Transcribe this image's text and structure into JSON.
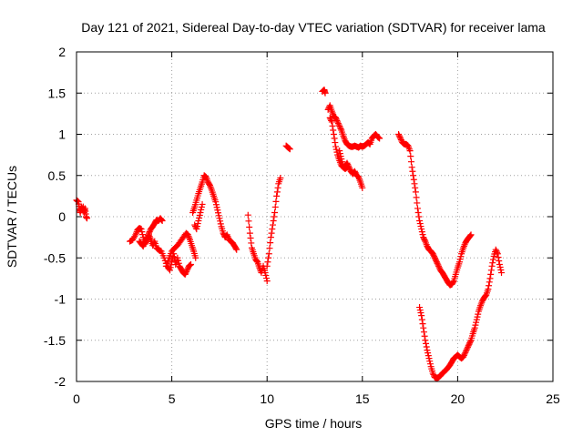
{
  "chart_data": {
    "type": "scatter",
    "title": "Day 121 of 2021, Sidereal Day-to-day VTEC variation (SDTVAR) for receiver lama",
    "xlabel": "GPS time / hours",
    "ylabel": "SDTVAR / TECUs",
    "xlim": [
      0,
      25
    ],
    "ylim": [
      -2,
      2
    ],
    "xticks": [
      0,
      5,
      10,
      15,
      20,
      25
    ],
    "yticks": [
      -2,
      -1.5,
      -1,
      -0.5,
      0,
      0.5,
      1,
      1.5,
      2
    ],
    "xtick_labels": [
      "0",
      "5",
      "10",
      "15",
      "20",
      "25"
    ],
    "ytick_labels": [
      "-2",
      "-1.5",
      "-1",
      "-0.5",
      "0",
      "0.5",
      "1",
      "1.5",
      "2"
    ],
    "grid": true,
    "marker": "+",
    "color": "#ff0000",
    "series": [
      {
        "name": "SDTVAR",
        "segments": [
          [
            [
              0.0,
              0.2
            ],
            [
              0.1,
              0.18
            ],
            [
              0.15,
              0.1
            ],
            [
              0.2,
              0.05
            ],
            [
              0.25,
              0.12
            ],
            [
              0.3,
              0.08
            ],
            [
              0.35,
              0.12
            ],
            [
              0.4,
              0.05
            ],
            [
              0.45,
              0.1
            ],
            [
              0.5,
              0.0
            ],
            [
              0.55,
              -0.02
            ]
          ],
          [
            [
              2.8,
              -0.3
            ],
            [
              2.95,
              -0.28
            ],
            [
              3.1,
              -0.22
            ],
            [
              3.2,
              -0.16
            ],
            [
              3.3,
              -0.14
            ],
            [
              3.4,
              -0.15
            ],
            [
              3.5,
              -0.25
            ],
            [
              3.6,
              -0.33
            ],
            [
              3.7,
              -0.28
            ],
            [
              3.8,
              -0.2
            ],
            [
              3.9,
              -0.15
            ],
            [
              4.0,
              -0.12
            ],
            [
              4.1,
              -0.08
            ],
            [
              4.2,
              -0.04
            ],
            [
              4.3,
              -0.05
            ],
            [
              4.4,
              -0.02
            ],
            [
              4.5,
              -0.05
            ]
          ],
          [
            [
              3.3,
              -0.3
            ],
            [
              3.4,
              -0.33
            ],
            [
              3.5,
              -0.36
            ],
            [
              3.6,
              -0.3
            ],
            [
              3.7,
              -0.26
            ],
            [
              3.8,
              -0.22
            ],
            [
              3.9,
              -0.28
            ],
            [
              4.0,
              -0.35
            ],
            [
              4.1,
              -0.3
            ],
            [
              4.2,
              -0.38
            ],
            [
              4.3,
              -0.4
            ],
            [
              4.45,
              -0.42
            ],
            [
              4.6,
              -0.5
            ],
            [
              4.75,
              -0.6
            ],
            [
              4.9,
              -0.65
            ],
            [
              5.0,
              -0.55
            ],
            [
              5.1,
              -0.45
            ],
            [
              5.2,
              -0.58
            ],
            [
              5.3,
              -0.5
            ],
            [
              5.4,
              -0.6
            ],
            [
              5.5,
              -0.64
            ],
            [
              5.6,
              -0.68
            ],
            [
              5.7,
              -0.7
            ],
            [
              5.8,
              -0.65
            ],
            [
              5.9,
              -0.6
            ],
            [
              6.0,
              -0.58
            ]
          ],
          [
            [
              4.7,
              -0.6
            ],
            [
              4.85,
              -0.5
            ],
            [
              5.0,
              -0.42
            ],
            [
              5.15,
              -0.38
            ],
            [
              5.3,
              -0.35
            ],
            [
              5.45,
              -0.3
            ],
            [
              5.6,
              -0.25
            ],
            [
              5.75,
              -0.2
            ],
            [
              5.85,
              -0.22
            ],
            [
              5.95,
              -0.28
            ],
            [
              6.05,
              -0.35
            ],
            [
              6.15,
              -0.42
            ],
            [
              6.25,
              -0.5
            ]
          ],
          [
            [
              6.1,
              0.05
            ],
            [
              6.2,
              0.12
            ],
            [
              6.3,
              0.2
            ],
            [
              6.4,
              0.28
            ],
            [
              6.5,
              0.35
            ],
            [
              6.6,
              0.42
            ],
            [
              6.7,
              0.5
            ],
            [
              6.8,
              0.48
            ],
            [
              6.9,
              0.42
            ],
            [
              7.0,
              0.38
            ],
            [
              7.1,
              0.32
            ],
            [
              7.2,
              0.25
            ],
            [
              7.3,
              0.18
            ],
            [
              7.4,
              0.08
            ],
            [
              7.5,
              -0.02
            ],
            [
              7.6,
              -0.12
            ],
            [
              7.7,
              -0.2
            ],
            [
              7.8,
              -0.25
            ],
            [
              7.9,
              -0.22
            ],
            [
              8.0,
              -0.28
            ],
            [
              8.1,
              -0.3
            ],
            [
              8.2,
              -0.32
            ],
            [
              8.3,
              -0.36
            ],
            [
              8.4,
              -0.4
            ]
          ],
          [
            [
              6.2,
              -0.1
            ],
            [
              6.3,
              -0.15
            ],
            [
              6.4,
              -0.05
            ],
            [
              6.5,
              0.05
            ],
            [
              6.6,
              0.15
            ]
          ],
          [
            [
              9.0,
              0.02
            ],
            [
              9.1,
              -0.2
            ],
            [
              9.2,
              -0.38
            ],
            [
              9.3,
              -0.45
            ],
            [
              9.4,
              -0.52
            ],
            [
              9.5,
              -0.55
            ],
            [
              9.6,
              -0.62
            ],
            [
              9.7,
              -0.68
            ],
            [
              9.8,
              -0.6
            ],
            [
              9.9,
              -0.68
            ],
            [
              10.0,
              -0.78
            ]
          ],
          [
            [
              10.0,
              -0.6
            ],
            [
              10.1,
              -0.45
            ],
            [
              10.2,
              -0.25
            ],
            [
              10.3,
              -0.1
            ],
            [
              10.4,
              0.05
            ],
            [
              10.5,
              0.25
            ],
            [
              10.6,
              0.4
            ],
            [
              10.7,
              0.47
            ]
          ],
          [
            [
              11.0,
              0.86
            ],
            [
              11.1,
              0.84
            ],
            [
              11.2,
              0.82
            ]
          ],
          [
            [
              12.9,
              1.52
            ],
            [
              13.0,
              1.54
            ],
            [
              13.05,
              1.5
            ]
          ],
          [
            [
              13.2,
              1.3
            ],
            [
              13.3,
              1.35
            ],
            [
              13.4,
              1.28
            ],
            [
              13.5,
              1.22
            ],
            [
              13.6,
              1.2
            ],
            [
              13.7,
              1.15
            ],
            [
              13.8,
              1.1
            ],
            [
              13.9,
              1.05
            ],
            [
              14.0,
              0.98
            ],
            [
              14.1,
              0.92
            ],
            [
              14.2,
              0.88
            ],
            [
              14.3,
              0.86
            ],
            [
              14.4,
              0.85
            ],
            [
              14.5,
              0.85
            ],
            [
              14.6,
              0.86
            ],
            [
              14.7,
              0.85
            ],
            [
              14.8,
              0.84
            ],
            [
              14.9,
              0.86
            ],
            [
              15.0,
              0.85
            ],
            [
              15.1,
              0.86
            ],
            [
              15.2,
              0.88
            ],
            [
              15.3,
              0.9
            ],
            [
              15.4,
              0.88
            ],
            [
              15.5,
              0.95
            ],
            [
              15.6,
              0.98
            ],
            [
              15.7,
              1.0
            ],
            [
              15.8,
              0.97
            ],
            [
              15.9,
              0.95
            ]
          ],
          [
            [
              13.3,
              1.2
            ],
            [
              13.4,
              1.15
            ],
            [
              13.5,
              1.0
            ],
            [
              13.6,
              0.85
            ],
            [
              13.7,
              0.75
            ],
            [
              13.8,
              0.68
            ],
            [
              13.9,
              0.62
            ],
            [
              14.0,
              0.6
            ],
            [
              14.1,
              0.62
            ],
            [
              14.2,
              0.65
            ],
            [
              14.3,
              0.6
            ],
            [
              14.4,
              0.55
            ],
            [
              14.5,
              0.52
            ],
            [
              14.6,
              0.55
            ],
            [
              14.7,
              0.5
            ],
            [
              14.8,
              0.48
            ],
            [
              14.9,
              0.42
            ],
            [
              15.0,
              0.35
            ]
          ],
          [
            [
              13.8,
              0.8
            ],
            [
              13.9,
              0.7
            ],
            [
              14.0,
              0.6
            ],
            [
              14.1,
              0.58
            ],
            [
              14.2,
              0.6
            ]
          ],
          [
            [
              16.9,
              1.0
            ],
            [
              17.0,
              0.95
            ],
            [
              17.1,
              0.9
            ],
            [
              17.2,
              0.88
            ],
            [
              17.3,
              0.88
            ],
            [
              17.4,
              0.86
            ],
            [
              17.5,
              0.8
            ],
            [
              17.6,
              0.6
            ],
            [
              17.7,
              0.45
            ],
            [
              17.8,
              0.3
            ],
            [
              17.9,
              0.1
            ],
            [
              18.0,
              -0.05
            ],
            [
              18.1,
              -0.15
            ],
            [
              18.2,
              -0.25
            ],
            [
              18.3,
              -0.3
            ],
            [
              18.4,
              -0.36
            ],
            [
              18.5,
              -0.4
            ],
            [
              18.6,
              -0.42
            ],
            [
              18.7,
              -0.45
            ],
            [
              18.8,
              -0.5
            ],
            [
              18.9,
              -0.55
            ],
            [
              19.0,
              -0.6
            ],
            [
              19.1,
              -0.65
            ],
            [
              19.2,
              -0.68
            ],
            [
              19.3,
              -0.72
            ],
            [
              19.4,
              -0.76
            ],
            [
              19.5,
              -0.8
            ],
            [
              19.6,
              -0.83
            ],
            [
              19.7,
              -0.82
            ],
            [
              19.8,
              -0.78
            ],
            [
              19.9,
              -0.7
            ],
            [
              20.0,
              -0.62
            ],
            [
              20.1,
              -0.55
            ],
            [
              20.2,
              -0.45
            ],
            [
              20.3,
              -0.38
            ],
            [
              20.4,
              -0.32
            ],
            [
              20.5,
              -0.28
            ],
            [
              20.6,
              -0.25
            ],
            [
              20.7,
              -0.22
            ]
          ],
          [
            [
              18.0,
              -1.1
            ],
            [
              18.1,
              -1.2
            ],
            [
              18.2,
              -1.35
            ],
            [
              18.3,
              -1.5
            ],
            [
              18.4,
              -1.62
            ],
            [
              18.5,
              -1.72
            ],
            [
              18.6,
              -1.82
            ],
            [
              18.7,
              -1.9
            ],
            [
              18.8,
              -1.95
            ],
            [
              18.9,
              -1.96
            ],
            [
              19.0,
              -1.95
            ],
            [
              19.1,
              -1.93
            ],
            [
              19.2,
              -1.9
            ],
            [
              19.3,
              -1.88
            ],
            [
              19.4,
              -1.86
            ],
            [
              19.5,
              -1.83
            ],
            [
              19.6,
              -1.8
            ],
            [
              19.7,
              -1.76
            ],
            [
              19.8,
              -1.72
            ],
            [
              19.9,
              -1.7
            ],
            [
              20.0,
              -1.68
            ],
            [
              20.1,
              -1.7
            ],
            [
              20.2,
              -1.72
            ],
            [
              20.3,
              -1.7
            ],
            [
              20.4,
              -1.65
            ],
            [
              20.5,
              -1.6
            ],
            [
              20.6,
              -1.55
            ],
            [
              20.7,
              -1.5
            ],
            [
              20.8,
              -1.42
            ],
            [
              20.9,
              -1.35
            ],
            [
              21.0,
              -1.25
            ],
            [
              21.1,
              -1.15
            ],
            [
              21.2,
              -1.08
            ],
            [
              21.3,
              -1.02
            ],
            [
              21.4,
              -0.98
            ],
            [
              21.5,
              -0.95
            ],
            [
              21.6,
              -0.88
            ],
            [
              21.7,
              -0.75
            ],
            [
              21.8,
              -0.6
            ],
            [
              21.9,
              -0.48
            ],
            [
              22.0,
              -0.4
            ],
            [
              22.1,
              -0.45
            ],
            [
              22.2,
              -0.58
            ],
            [
              22.3,
              -0.68
            ]
          ]
        ]
      }
    ]
  }
}
